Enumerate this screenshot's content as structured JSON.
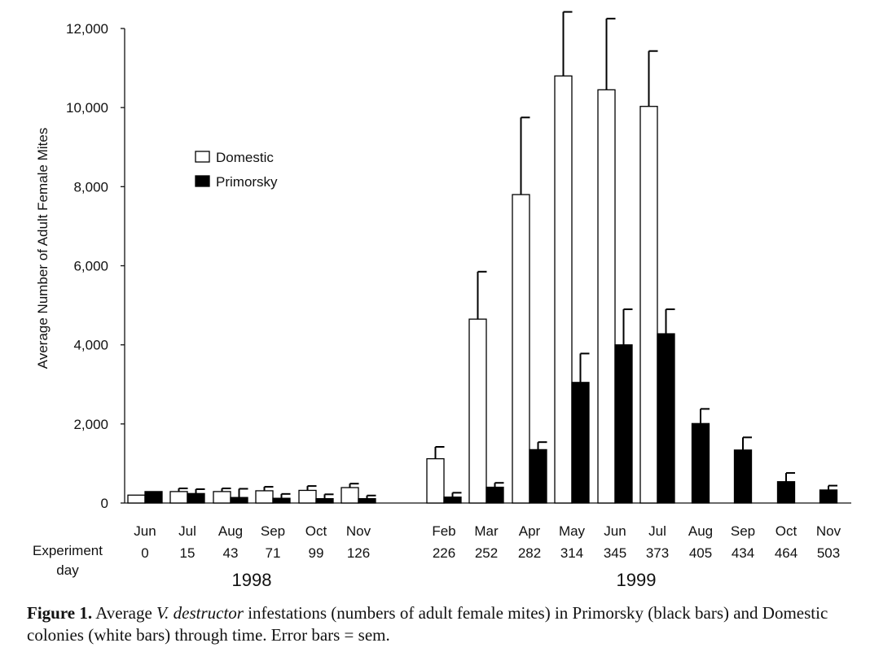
{
  "chart_data": {
    "type": "bar",
    "title": "",
    "ylabel": "Average Number of Adult Female Mites",
    "xlabel_row_label": "Experiment day",
    "ylim": [
      0,
      12000
    ],
    "yticks": [
      0,
      2000,
      4000,
      6000,
      8000,
      10000,
      12000
    ],
    "ytick_labels": [
      "0",
      "2,000",
      "4,000",
      "6,000",
      "8,000",
      "10,000",
      "12,000"
    ],
    "categories": [
      "Jun",
      "Jul",
      "Aug",
      "Sep",
      "Oct",
      "Nov",
      "Feb",
      "Mar",
      "Apr",
      "May",
      "Jun",
      "Jul",
      "Aug",
      "Sep",
      "Oct",
      "Nov"
    ],
    "experiment_days": [
      "0",
      "15",
      "43",
      "71",
      "99",
      "126",
      "226",
      "252",
      "282",
      "314",
      "345",
      "373",
      "405",
      "434",
      "464",
      "503"
    ],
    "years": [
      {
        "label": "1998",
        "first": 0,
        "last": 5
      },
      {
        "label": "1999",
        "first": 6,
        "last": 15
      }
    ],
    "legend": [
      {
        "name": "Domestic",
        "fill": "#ffffff"
      },
      {
        "name": "Primorsky",
        "fill": "#000000"
      }
    ],
    "series": [
      {
        "name": "Domestic",
        "color": "#ffffff",
        "values": [
          200,
          290,
          290,
          310,
          320,
          390,
          1120,
          4650,
          7800,
          10800,
          10450,
          10030,
          null,
          null,
          null,
          null
        ],
        "errors": [
          0,
          80,
          80,
          100,
          110,
          100,
          300,
          1200,
          1950,
          1620,
          1800,
          1400,
          null,
          null,
          null,
          null
        ]
      },
      {
        "name": "Primorsky",
        "color": "#000000",
        "values": [
          290,
          240,
          140,
          120,
          110,
          110,
          150,
          400,
          1350,
          3050,
          4000,
          4280,
          2010,
          1340,
          540,
          330
        ],
        "errors": [
          0,
          110,
          220,
          110,
          110,
          80,
          110,
          110,
          190,
          730,
          900,
          620,
          370,
          320,
          220,
          110
        ]
      }
    ]
  },
  "caption": {
    "label": "Figure 1.",
    "text_before": " Average ",
    "species": "V. destructor",
    "text_after": " infestations (numbers of adult female mites) in Primorsky (black bars) and Domestic colonies (white bars) through time. Error bars = sem."
  }
}
